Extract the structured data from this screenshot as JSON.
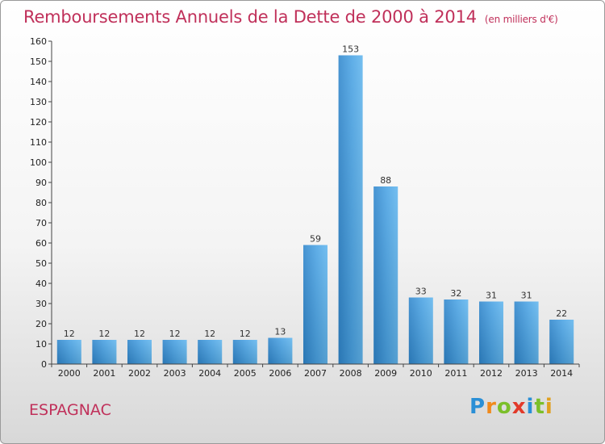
{
  "title": "Remboursements Annuels de la Dette de 2000 à 2014",
  "subtitle": "(en milliers d'€)",
  "commune": "ESPAGNAC",
  "brand": {
    "letters": [
      "P",
      "r",
      "o",
      "x",
      "i",
      "t",
      "i"
    ],
    "colors": [
      "#2a8fd6",
      "#f08a1c",
      "#7bbf2a",
      "#e23a2a",
      "#2a8fd6",
      "#7bbf2a",
      "#e0a020"
    ]
  },
  "colors": {
    "bar": "#3d95d8",
    "bar_light": "#5fb1ec",
    "axis": "#555555",
    "grid": "#cccccc"
  },
  "chart_data": {
    "type": "bar",
    "categories": [
      "2000",
      "2001",
      "2002",
      "2003",
      "2004",
      "2005",
      "2006",
      "2007",
      "2008",
      "2009",
      "2010",
      "2011",
      "2012",
      "2013",
      "2014"
    ],
    "values": [
      12,
      12,
      12,
      12,
      12,
      12,
      13,
      59,
      153,
      88,
      33,
      32,
      31,
      31,
      22
    ],
    "data_labels": [
      "12",
      "12",
      "12",
      "12",
      "12",
      "12",
      "13",
      "59",
      "153",
      "88",
      "33",
      "32",
      "31",
      "31",
      "22"
    ],
    "title": "Remboursements Annuels de la Dette de 2000 à 2014",
    "xlabel": "",
    "ylabel": "",
    "ylim": [
      0,
      160
    ],
    "yticks": [
      0,
      10,
      20,
      30,
      40,
      50,
      60,
      70,
      80,
      90,
      100,
      110,
      120,
      130,
      140,
      150,
      160
    ],
    "grid": false,
    "legend": "none"
  }
}
